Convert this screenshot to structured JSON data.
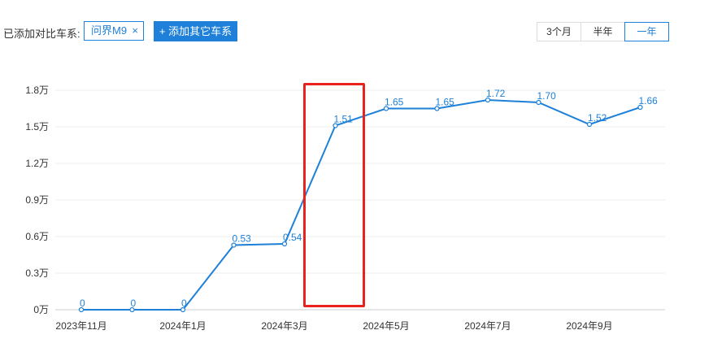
{
  "toolbar": {
    "added_label": "已添加对比车系:",
    "tag_label": "问界M9",
    "tag_remove": "×",
    "add_button_icon": "+",
    "add_button_label": "添加其它车系",
    "ranges": [
      "3个月",
      "半年",
      "一年"
    ],
    "active_range": "一年"
  },
  "colors": {
    "accent": "#1e80d8",
    "highlight": "#e8231e"
  },
  "chart_data": {
    "type": "line",
    "x": [
      "2023年11月",
      "2023年12月",
      "2024年1月",
      "2024年2月",
      "2024年3月",
      "2024年4月",
      "2024年5月",
      "2024年6月",
      "2024年7月",
      "2024年8月",
      "2024年9月",
      "2024年10月"
    ],
    "x_tick_labels": [
      "2023年11月",
      "",
      "2024年1月",
      "",
      "2024年3月",
      "",
      "2024年5月",
      "",
      "2024年7月",
      "",
      "2024年9月",
      ""
    ],
    "series": [
      {
        "values": [
          0,
          0,
          0,
          0.53,
          0.54,
          1.51,
          1.65,
          1.65,
          1.72,
          1.7,
          1.52,
          1.66
        ]
      }
    ],
    "y_ticks": [
      "0万",
      "0.3万",
      "0.6万",
      "0.9万",
      "1.2万",
      "1.5万",
      "1.8万"
    ],
    "ylim": [
      0,
      1.8
    ],
    "grid": true,
    "legend": "none",
    "highlighted_category": "2024年4月"
  }
}
